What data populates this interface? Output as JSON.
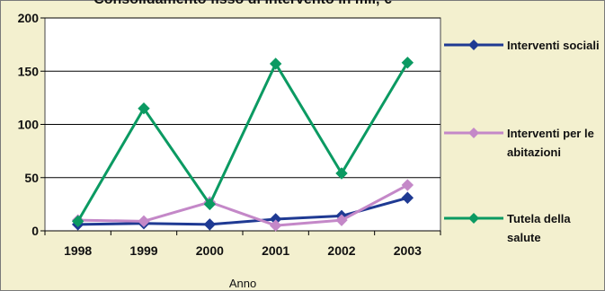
{
  "chart_data": {
    "type": "line",
    "title": "Consolidamento fisso di intervento in mil, €",
    "xlabel": "Anno",
    "ylabel": "",
    "categories": [
      "1998",
      "1999",
      "2000",
      "2001",
      "2002",
      "2003"
    ],
    "ylim": [
      0,
      200
    ],
    "yticks": [
      0,
      50,
      100,
      150,
      200
    ],
    "grid": true,
    "legend_position": "right",
    "series": [
      {
        "name": "Interventi sociali",
        "color": "#1f3a93",
        "marker": "diamond",
        "values": [
          6,
          7,
          6,
          11,
          14,
          31
        ]
      },
      {
        "name": "Interventi per le abitazioni",
        "color": "#c488c8",
        "marker": "diamond",
        "values": [
          10,
          9,
          27,
          5,
          10,
          43
        ]
      },
      {
        "name": "Tutela della salute",
        "color": "#0b9a62",
        "marker": "diamond",
        "values": [
          9,
          115,
          25,
          157,
          54,
          158
        ]
      }
    ],
    "legend_labels": [
      [
        "Interventi sociali"
      ],
      [
        "Interventi per le",
        "abitazioni"
      ],
      [
        "Tutela della",
        "salute"
      ]
    ]
  },
  "colors": {
    "background": "#f3f0cf",
    "plot_area": "#ffffff",
    "gridline": "#000000"
  }
}
